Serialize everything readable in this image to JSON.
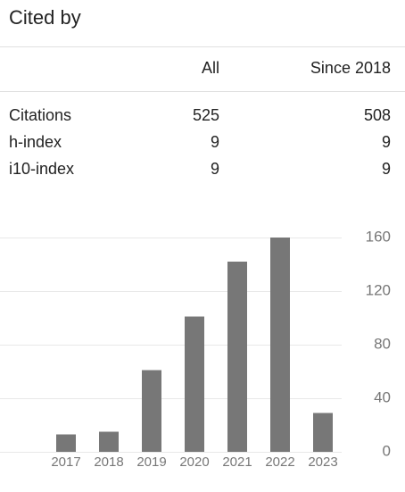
{
  "header": {
    "title": "Cited by"
  },
  "table": {
    "columns": [
      "All",
      "Since 2018"
    ],
    "rows": [
      [
        "Citations",
        525,
        508
      ],
      [
        "h-index",
        9,
        9
      ],
      [
        "i10-index",
        9,
        9
      ]
    ]
  },
  "chart_data": {
    "type": "bar",
    "categories": [
      "2017",
      "2018",
      "2019",
      "2020",
      "2021",
      "2022",
      "2023"
    ],
    "values": [
      13,
      15,
      61,
      101,
      142,
      160,
      29
    ],
    "color": "#777777",
    "ylim": [
      0,
      160
    ],
    "yticks": [
      0,
      40,
      80,
      120,
      160
    ],
    "grid": true
  }
}
